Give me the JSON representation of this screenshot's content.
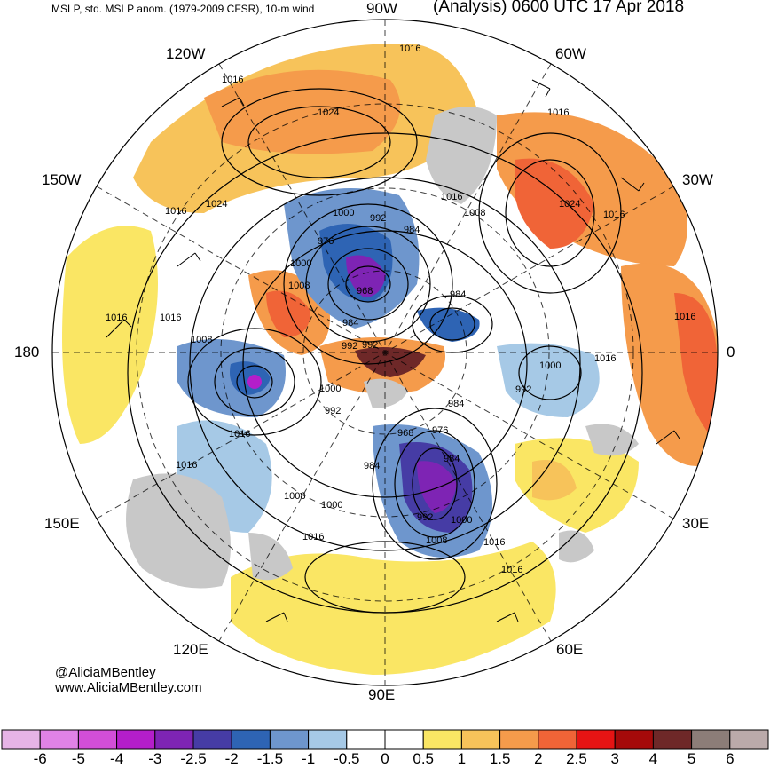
{
  "header": {
    "left": "MSLP, std. MSLP anom. (1979-2009 CFSR), 10-m wind",
    "right": "(Analysis) 0600 UTC 17 Apr 2018"
  },
  "longitude_labels": {
    "lon_90w": "90W",
    "lon_120w": "120W",
    "lon_60w": "60W",
    "lon_150w": "150W",
    "lon_30w": "30W",
    "lon_180": "180",
    "lon_0": "0",
    "lon_150e": "150E",
    "lon_30e": "30E",
    "lon_120e": "120E",
    "lon_60e": "60E",
    "lon_90e": "90E"
  },
  "isobar_labels": [
    "1016",
    "1016",
    "1016",
    "1024",
    "1024",
    "1016",
    "1000",
    "992",
    "984",
    "976",
    "1016",
    "1008",
    "1024",
    "1016",
    "1000",
    "1008",
    "968",
    "984",
    "1016",
    "1016",
    "1008",
    "984",
    "992",
    "992",
    "1000",
    "1016",
    "1000",
    "984",
    "992",
    "992",
    "968",
    "976",
    "1016",
    "984",
    "1016",
    "1008",
    "1000",
    "992",
    "1000",
    "1008",
    "1016",
    "1016",
    "1016",
    "1016",
    "984"
  ],
  "credits": {
    "handle": "@AliciaMBentley",
    "website": "www.AliciaMBentley.com"
  },
  "colorbar": {
    "ticks": [
      "-6",
      "-5",
      "-4",
      "-3",
      "-2.5",
      "-2",
      "-1.5",
      "-1",
      "-0.5",
      "0",
      "0.5",
      "1",
      "1.5",
      "2",
      "2.5",
      "3",
      "4",
      "5",
      "6"
    ],
    "colors": [
      "#e6b4e6",
      "#e082e6",
      "#d24ed8",
      "#b41eca",
      "#7e24b4",
      "#463ca5",
      "#2e64b4",
      "#6e96cd",
      "#a6c9e6",
      "#ffffff",
      "#ffffff",
      "#fae664",
      "#f7c35a",
      "#f59b4b",
      "#f06437",
      "#e61414",
      "#a50a0a",
      "#6e2828",
      "#8c7d78",
      "#bbaaaa"
    ]
  },
  "colors": {
    "land_gray": "#c8c8c8",
    "wind_barb": "#000000",
    "isobar": "#000000"
  }
}
